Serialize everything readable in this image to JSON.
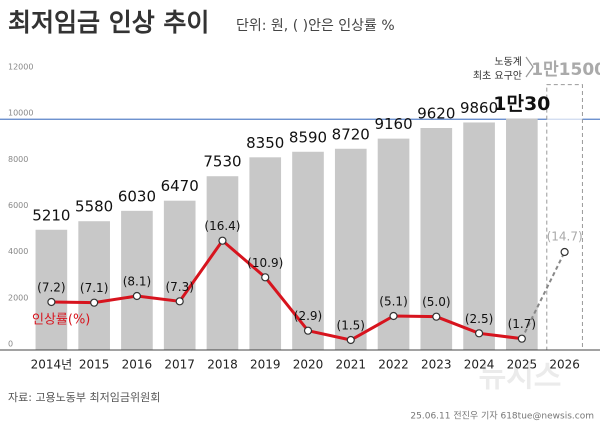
{
  "chart_data": {
    "type": "bar",
    "title": "최저임금 인상 추이",
    "subtitle": "단위: 원, ( )안은 인상률 %",
    "categories": [
      "2014년",
      "2015",
      "2016",
      "2017",
      "2018",
      "2019",
      "2020",
      "2021",
      "2022",
      "2023",
      "2024",
      "2025",
      "2026"
    ],
    "values": [
      5210,
      5580,
      6030,
      6470,
      7530,
      8350,
      8590,
      8720,
      9160,
      9620,
      9860,
      10030,
      null
    ],
    "value_labels": [
      "5210",
      "5580",
      "6030",
      "6470",
      "7530",
      "8350",
      "8590",
      "8720",
      "9160",
      "9620",
      "9860",
      "1만30",
      null
    ],
    "color": "#c8c8c8",
    "ylim": [
      0,
      13000
    ],
    "yticks": [
      0,
      2000,
      4000,
      6000,
      8000,
      10000,
      12000
    ],
    "hline": {
      "value": 10000,
      "color": "#5a82c8"
    },
    "series": [
      {
        "name": "인상률(%)",
        "color": "#d7141e",
        "axis": "y2",
        "values": [
          7.2,
          7.1,
          8.1,
          7.3,
          16.4,
          10.9,
          2.9,
          1.5,
          5.1,
          5.0,
          2.5,
          1.7,
          null
        ],
        "value_labels": [
          "(7.2)",
          "(7.1)",
          "(8.1)",
          "(7.3)",
          "(16.4)",
          "(10.9)",
          "(2.9)",
          "(1.5)",
          "(5.1)",
          "(5.0)",
          "(2.5)",
          "(1.7)",
          null
        ]
      }
    ],
    "y2lim": [
      0,
      45
    ],
    "projection": {
      "value": 14.7,
      "value_label": "(14.7)"
    },
    "demand": {
      "value": 11500,
      "value_label": "1만1500",
      "label": [
        "노동계",
        "최초 요구안"
      ]
    },
    "source": "자료: 고용노동부 최저임금위원회",
    "credit": "25.06.11 전진우 기자 618tue@newsis.com",
    "watermark": "뉴시스"
  }
}
